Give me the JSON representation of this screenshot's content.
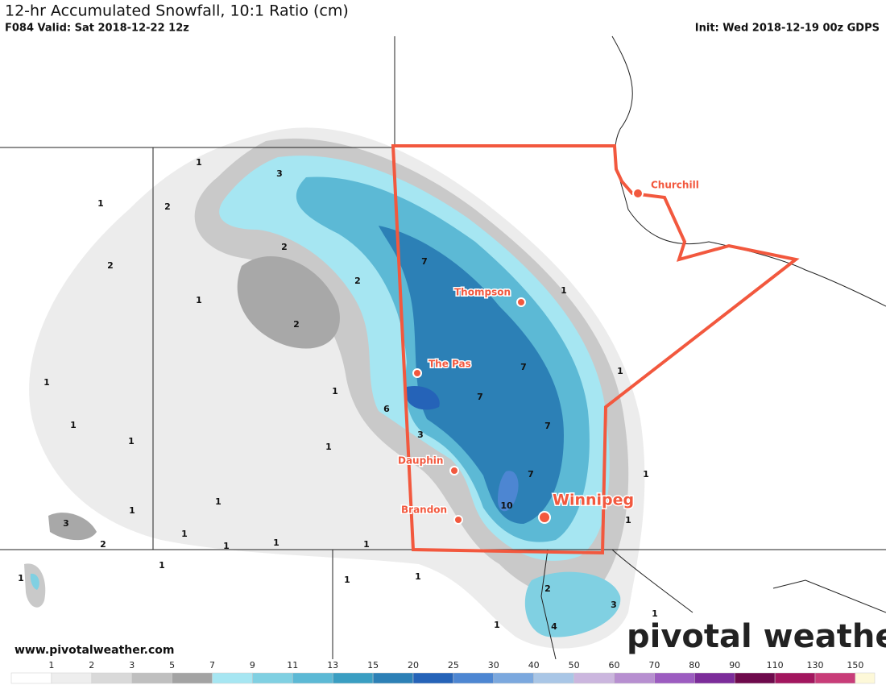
{
  "header": {
    "title": "12-hr Accumulated Snowfall, 10:1 Ratio (cm)",
    "valid": "F084 Valid: Sat 2018-12-22 12z",
    "init": "Init: Wed 2018-12-19 00z GDPS"
  },
  "cities": [
    "Churchill",
    "Thompson",
    "The Pas",
    "Dauphin",
    "Brandon",
    "Winnipeg"
  ],
  "map_labels": [
    1,
    3,
    1,
    2,
    2,
    2,
    7,
    2,
    1,
    1,
    2,
    1,
    7,
    1,
    7,
    1,
    6,
    1,
    1,
    7,
    3,
    1,
    1,
    7,
    1,
    1,
    10,
    3,
    1,
    2,
    1,
    1,
    1,
    1,
    1,
    1,
    1,
    1,
    2,
    3,
    1,
    1,
    4
  ],
  "footer": {
    "url": "www.pivotalweather.com",
    "brand": "pivotal weather"
  },
  "legend": {
    "ticks": [
      1,
      2,
      3,
      5,
      7,
      9,
      11,
      13,
      15,
      20,
      25,
      30,
      40,
      50,
      60,
      70,
      80,
      90,
      110,
      130,
      150
    ],
    "colors": [
      "#ffffff",
      "#eeeeee",
      "#d9d9d9",
      "#bfbfbf",
      "#a3a3a3",
      "#a6e6f2",
      "#80d0e2",
      "#5cb9d5",
      "#3a9ec2",
      "#2c80b6",
      "#2563b8",
      "#4d86d2",
      "#7ba8de",
      "#a9c6e6",
      "#cbb6de",
      "#b78fd0",
      "#9c5cc0",
      "#7c2c9a",
      "#6e0a4c",
      "#a2165e",
      "#c83c78",
      "#fdf8d8"
    ]
  }
}
